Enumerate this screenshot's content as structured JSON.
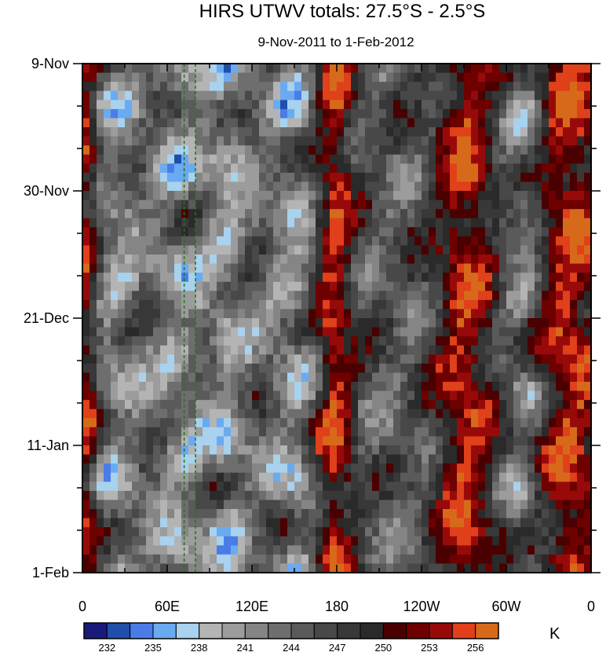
{
  "chart_data": {
    "type": "heatmap",
    "title": "HIRS UTWV totals: 27.5°S - 2.5°S",
    "subtitle": "9-Nov-2011 to 1-Feb-2012",
    "x_ticks": [
      "0",
      "60E",
      "120E",
      "180",
      "120W",
      "60W",
      "0"
    ],
    "x_tick_values": [
      0,
      60,
      120,
      180,
      240,
      300,
      360
    ],
    "xlim": [
      0,
      360
    ],
    "y_ticks": [
      "9-Nov",
      "30-Nov",
      "21-Dec",
      "11-Jan",
      "1-Feb"
    ],
    "y_tick_days": [
      0,
      21,
      42,
      63,
      84
    ],
    "ylim": [
      0,
      84
    ],
    "colorbar": {
      "unit": "K",
      "levels": [
        232,
        233.5,
        235,
        236.5,
        238,
        239.5,
        241,
        242.5,
        244,
        245.5,
        247,
        248.5,
        250,
        251.5,
        253,
        254.5,
        256
      ],
      "labels": [
        "232",
        "235",
        "238",
        "241",
        "244",
        "247",
        "250",
        "253",
        "256"
      ],
      "colors": [
        "#1a1a7a",
        "#1f4fa8",
        "#4a7ce8",
        "#6aaaf0",
        "#a8d2ee",
        "#b4b4b4",
        "#9c9c9c",
        "#858585",
        "#6e6e6e",
        "#5a5a5a",
        "#484848",
        "#383838",
        "#2a2a2a",
        "#4a0000",
        "#6e0000",
        "#980a0a",
        "#e0401a",
        "#d66a1a"
      ]
    },
    "field_description": {
      "grey_dominant_range": [
        240,
        249
      ],
      "red_bands_lon": [
        [
          0,
          6
        ],
        [
          172,
          184
        ],
        [
          260,
          283
        ],
        [
          330,
          360
        ]
      ],
      "blue_bands_lon": [
        [
          6,
          30
        ],
        [
          60,
          80
        ],
        [
          95,
          110
        ],
        [
          140,
          160
        ],
        [
          305,
          320
        ]
      ],
      "dashed_lines_lon": [
        72,
        80
      ]
    }
  }
}
